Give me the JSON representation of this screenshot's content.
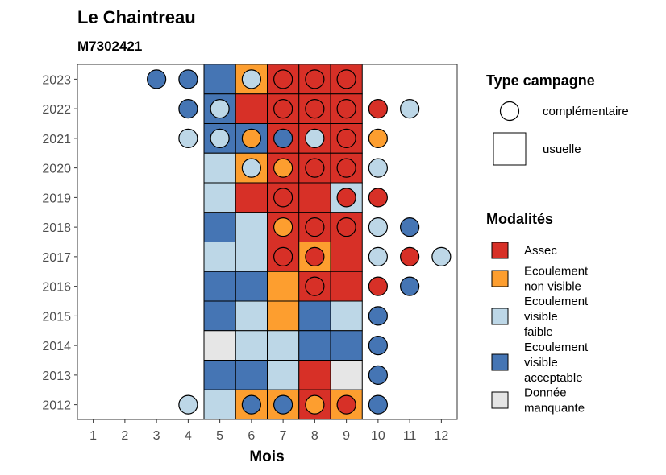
{
  "chart_data": {
    "type": "heatmap",
    "title": "Le Chaintreau",
    "subtitle": "M7302421",
    "xlabel": "Mois",
    "ylabel": "",
    "x_ticks": [
      "1",
      "2",
      "3",
      "4",
      "5",
      "6",
      "7",
      "8",
      "9",
      "10",
      "11",
      "12"
    ],
    "y_ticks": [
      "2012",
      "2013",
      "2014",
      "2015",
      "2016",
      "2017",
      "2018",
      "2019",
      "2020",
      "2021",
      "2022",
      "2023"
    ],
    "xlim": [
      0.5,
      12.5
    ],
    "ylim": [
      2011.5,
      2023.5
    ],
    "grid": false,
    "legend_position": "right",
    "colors": {
      "Assec": "#d73027",
      "Ecoulement non visible": "#fd9e2f",
      "Ecoulement visible faible": "#bdd7e7",
      "Ecoulement visible acceptable": "#4575b4",
      "Donnée manquante": "#e6e6e6"
    },
    "legend_shape": {
      "title": "Type campagne",
      "items": [
        {
          "label": "complémentaire",
          "shape": "circle"
        },
        {
          "label": "usuelle",
          "shape": "square"
        }
      ]
    },
    "legend_fill": {
      "title": "Modalités",
      "items": [
        {
          "key": "Assec",
          "lines": [
            "Assec"
          ]
        },
        {
          "key": "Ecoulement non visible",
          "lines": [
            "Ecoulement",
            "non visible"
          ]
        },
        {
          "key": "Ecoulement visible faible",
          "lines": [
            "Ecoulement",
            "visible",
            "faible"
          ]
        },
        {
          "key": "Ecoulement visible acceptable",
          "lines": [
            "Ecoulement",
            "visible",
            "acceptable"
          ]
        },
        {
          "key": "Donnée manquante",
          "lines": [
            "Donnée",
            "manquante"
          ]
        }
      ]
    },
    "usuelle": [
      {
        "year": 2023,
        "month": 5,
        "value": "Ecoulement visible acceptable"
      },
      {
        "year": 2023,
        "month": 6,
        "value": "Ecoulement non visible"
      },
      {
        "year": 2023,
        "month": 7,
        "value": "Assec"
      },
      {
        "year": 2023,
        "month": 8,
        "value": "Assec"
      },
      {
        "year": 2023,
        "month": 9,
        "value": "Assec"
      },
      {
        "year": 2022,
        "month": 5,
        "value": "Ecoulement visible acceptable"
      },
      {
        "year": 2022,
        "month": 6,
        "value": "Assec"
      },
      {
        "year": 2022,
        "month": 7,
        "value": "Assec"
      },
      {
        "year": 2022,
        "month": 8,
        "value": "Assec"
      },
      {
        "year": 2022,
        "month": 9,
        "value": "Assec"
      },
      {
        "year": 2021,
        "month": 5,
        "value": "Ecoulement visible acceptable"
      },
      {
        "year": 2021,
        "month": 6,
        "value": "Ecoulement visible acceptable"
      },
      {
        "year": 2021,
        "month": 7,
        "value": "Assec"
      },
      {
        "year": 2021,
        "month": 8,
        "value": "Assec"
      },
      {
        "year": 2021,
        "month": 9,
        "value": "Assec"
      },
      {
        "year": 2020,
        "month": 5,
        "value": "Ecoulement visible faible"
      },
      {
        "year": 2020,
        "month": 6,
        "value": "Ecoulement non visible"
      },
      {
        "year": 2020,
        "month": 7,
        "value": "Assec"
      },
      {
        "year": 2020,
        "month": 8,
        "value": "Assec"
      },
      {
        "year": 2020,
        "month": 9,
        "value": "Assec"
      },
      {
        "year": 2019,
        "month": 5,
        "value": "Ecoulement visible faible"
      },
      {
        "year": 2019,
        "month": 6,
        "value": "Assec"
      },
      {
        "year": 2019,
        "month": 7,
        "value": "Assec"
      },
      {
        "year": 2019,
        "month": 8,
        "value": "Assec"
      },
      {
        "year": 2019,
        "month": 9,
        "value": "Ecoulement visible faible"
      },
      {
        "year": 2018,
        "month": 5,
        "value": "Ecoulement visible acceptable"
      },
      {
        "year": 2018,
        "month": 6,
        "value": "Ecoulement visible faible"
      },
      {
        "year": 2018,
        "month": 7,
        "value": "Assec"
      },
      {
        "year": 2018,
        "month": 8,
        "value": "Assec"
      },
      {
        "year": 2018,
        "month": 9,
        "value": "Assec"
      },
      {
        "year": 2017,
        "month": 5,
        "value": "Ecoulement visible faible"
      },
      {
        "year": 2017,
        "month": 6,
        "value": "Ecoulement visible faible"
      },
      {
        "year": 2017,
        "month": 7,
        "value": "Assec"
      },
      {
        "year": 2017,
        "month": 8,
        "value": "Ecoulement non visible"
      },
      {
        "year": 2017,
        "month": 9,
        "value": "Assec"
      },
      {
        "year": 2016,
        "month": 5,
        "value": "Ecoulement visible acceptable"
      },
      {
        "year": 2016,
        "month": 6,
        "value": "Ecoulement visible acceptable"
      },
      {
        "year": 2016,
        "month": 7,
        "value": "Ecoulement non visible"
      },
      {
        "year": 2016,
        "month": 8,
        "value": "Assec"
      },
      {
        "year": 2016,
        "month": 9,
        "value": "Assec"
      },
      {
        "year": 2015,
        "month": 5,
        "value": "Ecoulement visible acceptable"
      },
      {
        "year": 2015,
        "month": 6,
        "value": "Ecoulement visible faible"
      },
      {
        "year": 2015,
        "month": 7,
        "value": "Ecoulement non visible"
      },
      {
        "year": 2015,
        "month": 8,
        "value": "Ecoulement visible acceptable"
      },
      {
        "year": 2015,
        "month": 9,
        "value": "Ecoulement visible faible"
      },
      {
        "year": 2014,
        "month": 5,
        "value": "Donnée manquante"
      },
      {
        "year": 2014,
        "month": 6,
        "value": "Ecoulement visible faible"
      },
      {
        "year": 2014,
        "month": 7,
        "value": "Ecoulement visible faible"
      },
      {
        "year": 2014,
        "month": 8,
        "value": "Ecoulement visible acceptable"
      },
      {
        "year": 2014,
        "month": 9,
        "value": "Ecoulement visible acceptable"
      },
      {
        "year": 2013,
        "month": 5,
        "value": "Ecoulement visible acceptable"
      },
      {
        "year": 2013,
        "month": 6,
        "value": "Ecoulement visible acceptable"
      },
      {
        "year": 2013,
        "month": 7,
        "value": "Ecoulement visible faible"
      },
      {
        "year": 2013,
        "month": 8,
        "value": "Assec"
      },
      {
        "year": 2013,
        "month": 9,
        "value": "Donnée manquante"
      },
      {
        "year": 2012,
        "month": 5,
        "value": "Ecoulement visible faible"
      },
      {
        "year": 2012,
        "month": 6,
        "value": "Ecoulement non visible"
      },
      {
        "year": 2012,
        "month": 7,
        "value": "Ecoulement non visible"
      },
      {
        "year": 2012,
        "month": 8,
        "value": "Assec"
      },
      {
        "year": 2012,
        "month": 9,
        "value": "Ecoulement non visible"
      }
    ],
    "complementaire": [
      {
        "year": 2023,
        "month": 3,
        "value": "Ecoulement visible acceptable"
      },
      {
        "year": 2023,
        "month": 4,
        "value": "Ecoulement visible acceptable"
      },
      {
        "year": 2023,
        "month": 6,
        "value": "Ecoulement visible faible"
      },
      {
        "year": 2023,
        "month": 7,
        "value": "Assec"
      },
      {
        "year": 2023,
        "month": 8,
        "value": "Assec"
      },
      {
        "year": 2023,
        "month": 9,
        "value": "Assec"
      },
      {
        "year": 2022,
        "month": 4,
        "value": "Ecoulement visible acceptable"
      },
      {
        "year": 2022,
        "month": 5,
        "value": "Ecoulement visible faible"
      },
      {
        "year": 2022,
        "month": 7,
        "value": "Assec"
      },
      {
        "year": 2022,
        "month": 8,
        "value": "Assec"
      },
      {
        "year": 2022,
        "month": 9,
        "value": "Assec"
      },
      {
        "year": 2022,
        "month": 10,
        "value": "Assec"
      },
      {
        "year": 2022,
        "month": 11,
        "value": "Ecoulement visible faible"
      },
      {
        "year": 2021,
        "month": 4,
        "value": "Ecoulement visible faible"
      },
      {
        "year": 2021,
        "month": 5,
        "value": "Ecoulement visible faible"
      },
      {
        "year": 2021,
        "month": 6,
        "value": "Ecoulement non visible"
      },
      {
        "year": 2021,
        "month": 7,
        "value": "Ecoulement visible acceptable"
      },
      {
        "year": 2021,
        "month": 8,
        "value": "Ecoulement visible faible"
      },
      {
        "year": 2021,
        "month": 9,
        "value": "Assec"
      },
      {
        "year": 2021,
        "month": 10,
        "value": "Ecoulement non visible"
      },
      {
        "year": 2020,
        "month": 6,
        "value": "Ecoulement visible faible"
      },
      {
        "year": 2020,
        "month": 7,
        "value": "Ecoulement non visible"
      },
      {
        "year": 2020,
        "month": 8,
        "value": "Assec"
      },
      {
        "year": 2020,
        "month": 9,
        "value": "Assec"
      },
      {
        "year": 2020,
        "month": 10,
        "value": "Ecoulement visible faible"
      },
      {
        "year": 2019,
        "month": 7,
        "value": "Assec"
      },
      {
        "year": 2019,
        "month": 9,
        "value": "Assec"
      },
      {
        "year": 2019,
        "month": 10,
        "value": "Assec"
      },
      {
        "year": 2018,
        "month": 7,
        "value": "Ecoulement non visible"
      },
      {
        "year": 2018,
        "month": 8,
        "value": "Assec"
      },
      {
        "year": 2018,
        "month": 9,
        "value": "Assec"
      },
      {
        "year": 2018,
        "month": 10,
        "value": "Ecoulement visible faible"
      },
      {
        "year": 2018,
        "month": 11,
        "value": "Ecoulement visible acceptable"
      },
      {
        "year": 2017,
        "month": 7,
        "value": "Assec"
      },
      {
        "year": 2017,
        "month": 8,
        "value": "Assec"
      },
      {
        "year": 2017,
        "month": 10,
        "value": "Ecoulement visible faible"
      },
      {
        "year": 2017,
        "month": 11,
        "value": "Assec"
      },
      {
        "year": 2017,
        "month": 12,
        "value": "Ecoulement visible faible"
      },
      {
        "year": 2016,
        "month": 8,
        "value": "Assec"
      },
      {
        "year": 2016,
        "month": 10,
        "value": "Assec"
      },
      {
        "year": 2016,
        "month": 11,
        "value": "Ecoulement visible acceptable"
      },
      {
        "year": 2015,
        "month": 10,
        "value": "Ecoulement visible acceptable"
      },
      {
        "year": 2014,
        "month": 10,
        "value": "Ecoulement visible acceptable"
      },
      {
        "year": 2013,
        "month": 10,
        "value": "Ecoulement visible acceptable"
      },
      {
        "year": 2012,
        "month": 4,
        "value": "Ecoulement visible faible"
      },
      {
        "year": 2012,
        "month": 6,
        "value": "Ecoulement visible acceptable"
      },
      {
        "year": 2012,
        "month": 7,
        "value": "Ecoulement visible acceptable"
      },
      {
        "year": 2012,
        "month": 8,
        "value": "Ecoulement non visible"
      },
      {
        "year": 2012,
        "month": 9,
        "value": "Assec"
      },
      {
        "year": 2012,
        "month": 10,
        "value": "Ecoulement visible acceptable"
      }
    ]
  }
}
